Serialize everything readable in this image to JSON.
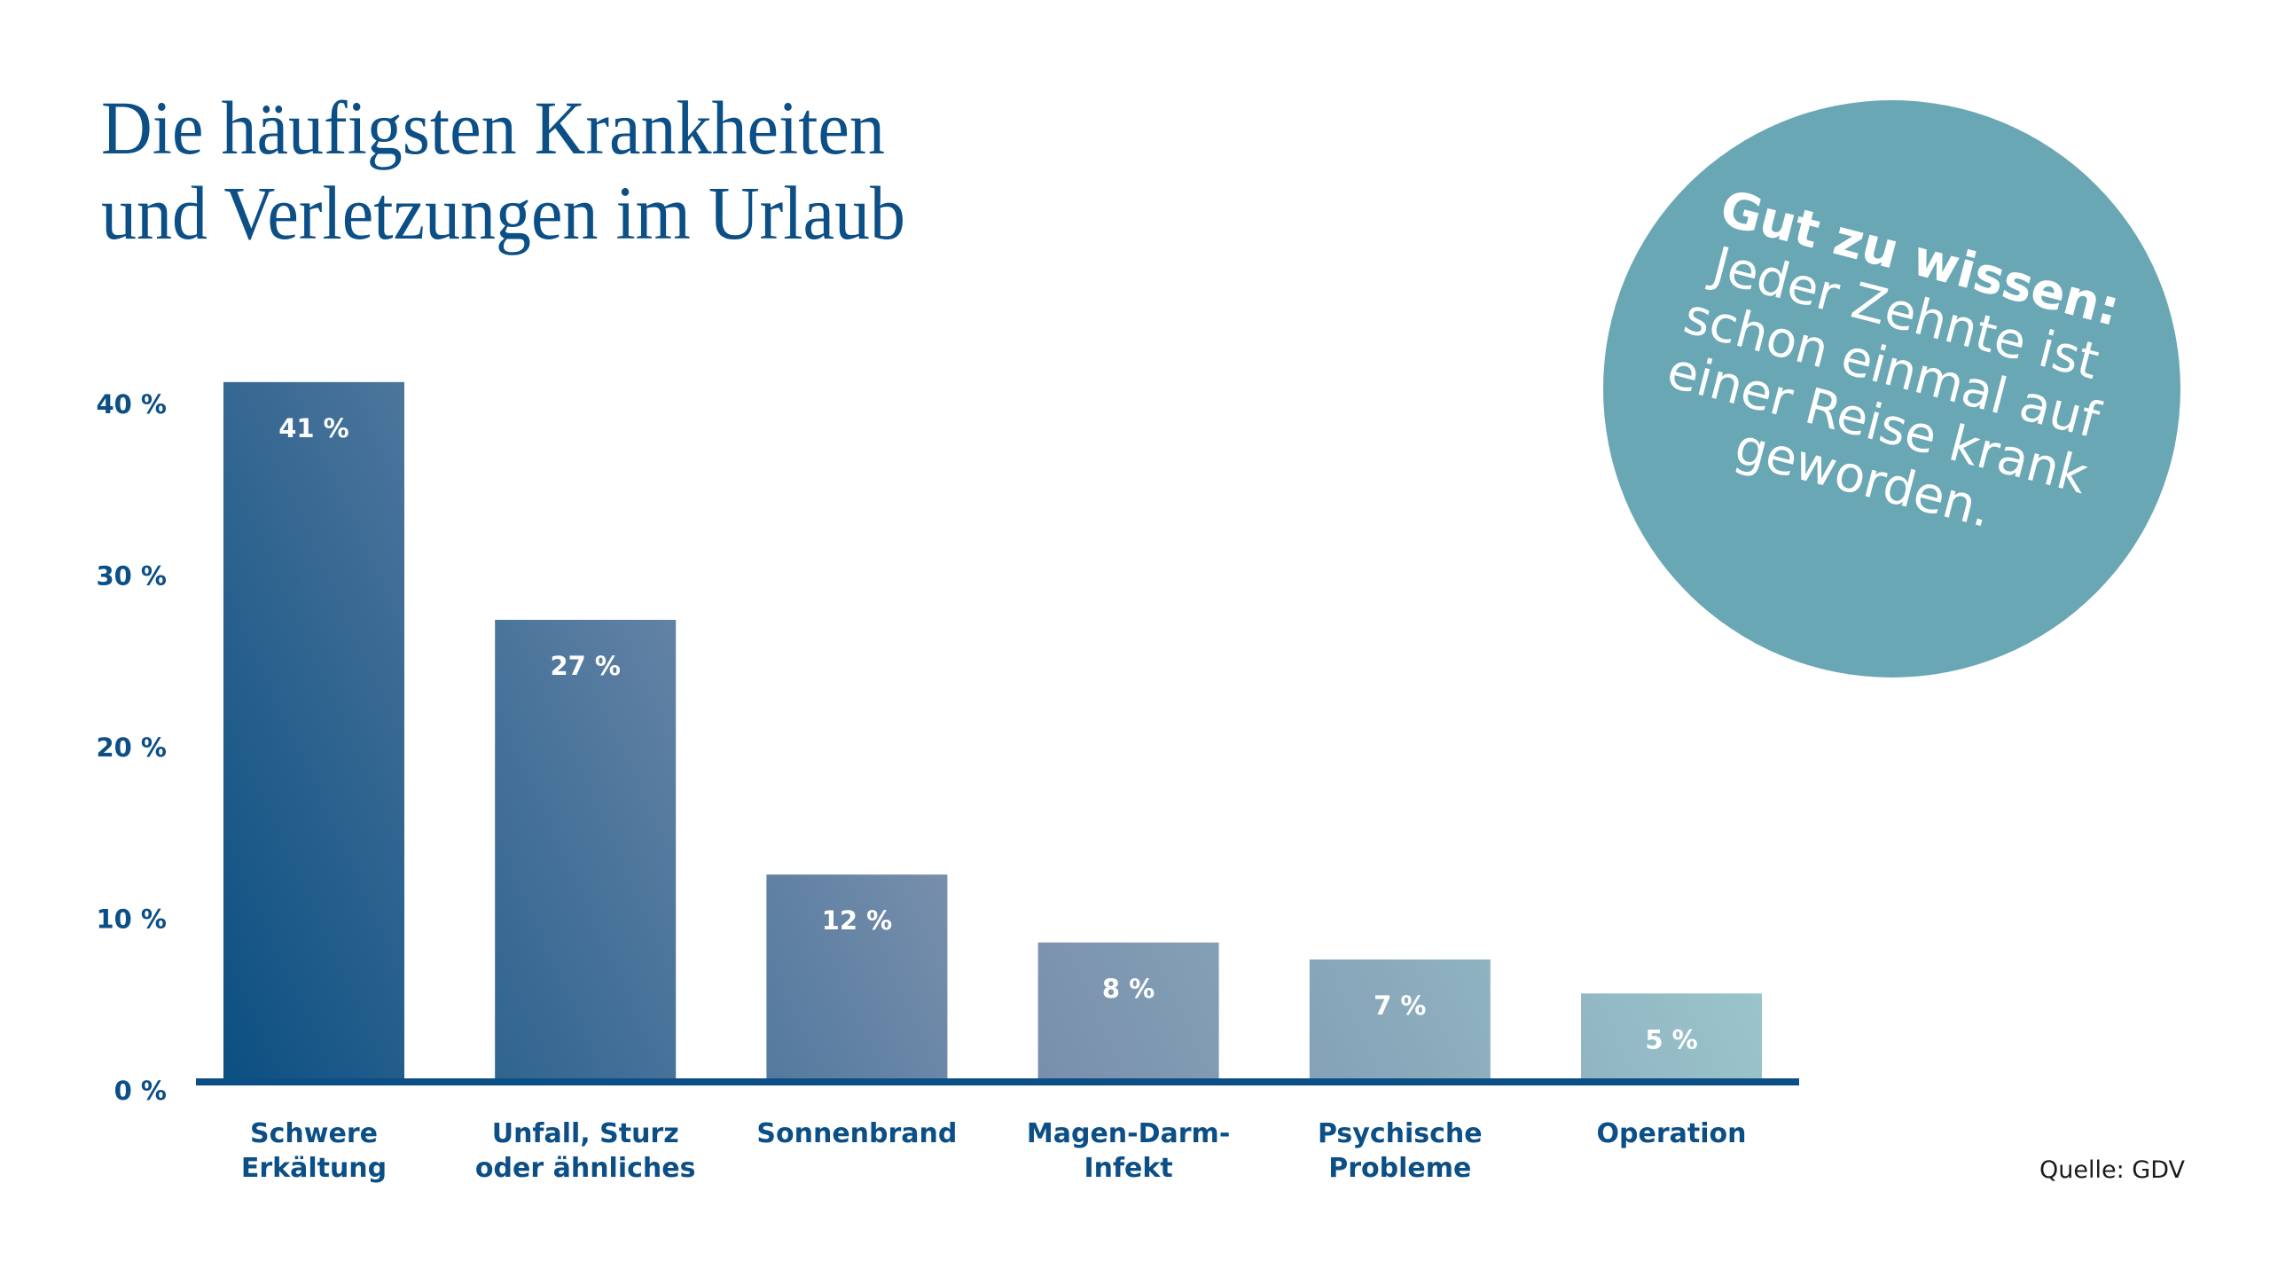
{
  "title": {
    "line1": "Die häufigsten Krankheiten",
    "line2": "und Verletzungen im Urlaub"
  },
  "callout": {
    "heading": "Gut zu wissen:",
    "lines": [
      "Jeder Zehnte ist",
      "schon einmal auf",
      "einer Reise krank",
      "geworden."
    ]
  },
  "source": "Quelle: GDV",
  "colors": {
    "primary": "#0b4f86",
    "bar_gradient_start": "#0b4f82",
    "bar_gradient_mid": "#7a90ad",
    "bar_gradient_end": "#a6d8d6",
    "callout_bg": "#6aa7b4"
  },
  "chart_data": {
    "type": "bar",
    "title": "Die häufigsten Krankheiten und Verletzungen im Urlaub",
    "xlabel": "",
    "ylabel": "",
    "categories": [
      [
        "Schwere",
        "Erkältung"
      ],
      [
        "Unfall, Sturz",
        "oder ähnliches"
      ],
      [
        "Sonnenbrand"
      ],
      [
        "Magen-Darm-",
        "Infekt"
      ],
      [
        "Psychische",
        "Probleme"
      ],
      [
        "Operation"
      ]
    ],
    "values": [
      41,
      27,
      12,
      8,
      7,
      5
    ],
    "value_labels": [
      "41 %",
      "27 %",
      "12 %",
      "8 %",
      "7 %",
      "5 %"
    ],
    "yticks": [
      0,
      10,
      20,
      30,
      40
    ],
    "ytick_labels": [
      "0 %",
      "10 %",
      "20 %",
      "30 %",
      "40 %"
    ],
    "ylim": [
      0,
      41
    ],
    "grid": false,
    "legend": "none",
    "source": "GDV"
  }
}
